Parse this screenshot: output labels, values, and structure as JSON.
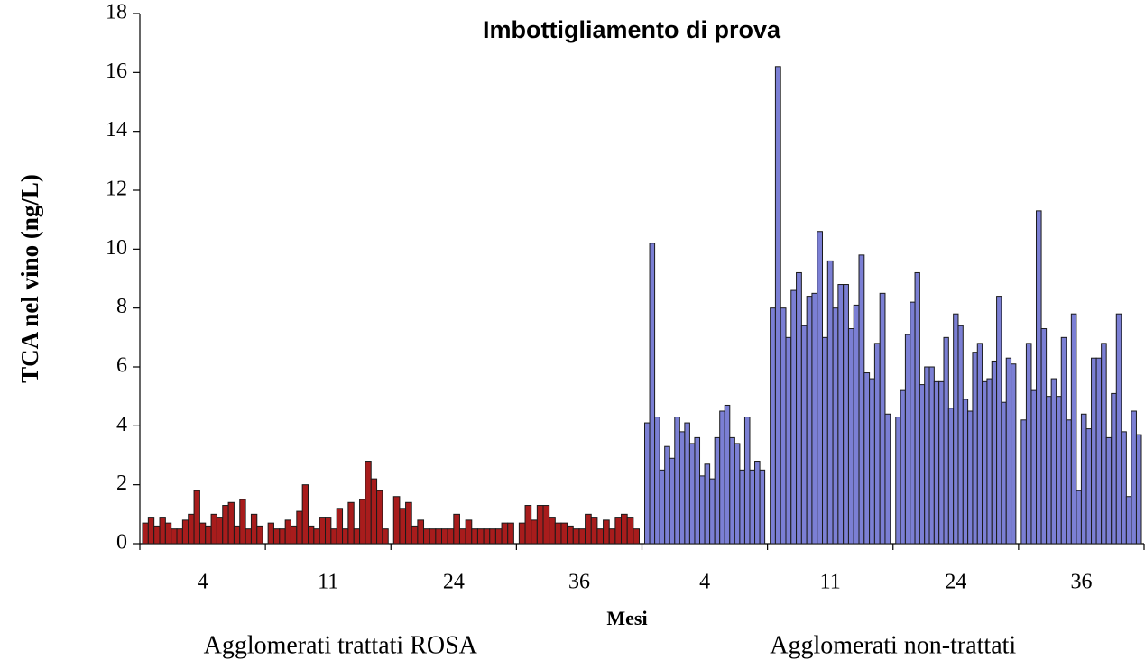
{
  "chart_data": {
    "type": "grouped-bar",
    "title": "Imbottigliamento di prova",
    "ylabel": "TCA nel vino (ng/L)",
    "xlabel": "Mesi",
    "ylim": [
      0,
      18
    ],
    "yticks": [
      0,
      2,
      4,
      6,
      8,
      10,
      12,
      14,
      16,
      18
    ],
    "groups": [
      {
        "name": "Agglomerati trattati ROSA",
        "color": "#a81c1c",
        "categories": [
          "4",
          "11",
          "24",
          "36"
        ],
        "values": [
          [
            0.7,
            0.9,
            0.6,
            0.9,
            0.7,
            0.5,
            0.5,
            0.8,
            1.0,
            1.8,
            0.7,
            0.6,
            1.0,
            0.9,
            1.3,
            1.4,
            0.6,
            1.5,
            0.5,
            1.0,
            0.6
          ],
          [
            0.7,
            0.5,
            0.5,
            0.8,
            0.6,
            1.1,
            2.0,
            0.6,
            0.5,
            0.9,
            0.9,
            0.5,
            1.2,
            0.5,
            1.4,
            0.5,
            1.5,
            2.8,
            2.2,
            1.8,
            0.5
          ],
          [
            1.6,
            1.2,
            1.4,
            0.6,
            0.8,
            0.5,
            0.5,
            0.5,
            0.5,
            0.5,
            1.0,
            0.5,
            0.8,
            0.5,
            0.5,
            0.5,
            0.5,
            0.5,
            0.7,
            0.7
          ],
          [
            0.7,
            1.3,
            0.8,
            1.3,
            1.3,
            0.9,
            0.7,
            0.7,
            0.6,
            0.5,
            0.5,
            1.0,
            0.9,
            0.5,
            0.8,
            0.5,
            0.9,
            1.0,
            0.9,
            0.5
          ]
        ]
      },
      {
        "name": "Agglomerati non-trattati",
        "color": "#7b7fd4",
        "categories": [
          "4",
          "11",
          "24",
          "36"
        ],
        "values": [
          [
            4.1,
            10.2,
            4.3,
            2.5,
            3.3,
            2.9,
            4.3,
            3.8,
            4.1,
            3.4,
            3.6,
            2.3,
            2.7,
            2.2,
            3.6,
            4.5,
            4.7,
            3.6,
            3.4,
            2.5,
            4.3,
            2.5,
            2.8,
            2.5
          ],
          [
            8.0,
            16.2,
            8.0,
            7.0,
            8.6,
            9.2,
            7.4,
            8.4,
            8.5,
            10.6,
            7.0,
            9.6,
            8.0,
            8.8,
            8.8,
            7.3,
            8.1,
            9.8,
            5.8,
            5.6,
            6.8,
            8.5,
            4.4
          ],
          [
            4.3,
            5.2,
            7.1,
            8.2,
            9.2,
            5.4,
            6.0,
            6.0,
            5.5,
            5.5,
            7.0,
            4.6,
            7.8,
            7.4,
            4.9,
            4.5,
            6.5,
            6.8,
            5.5,
            5.6,
            6.2,
            8.4,
            4.8,
            6.3,
            6.1
          ],
          [
            4.2,
            6.8,
            5.2,
            11.3,
            7.3,
            5.0,
            5.6,
            5.0,
            7.0,
            4.2,
            7.8,
            1.8,
            4.4,
            3.9,
            6.3,
            6.3,
            6.8,
            3.6,
            5.1,
            7.8,
            3.8,
            1.6,
            4.5,
            3.7
          ]
        ]
      }
    ]
  }
}
